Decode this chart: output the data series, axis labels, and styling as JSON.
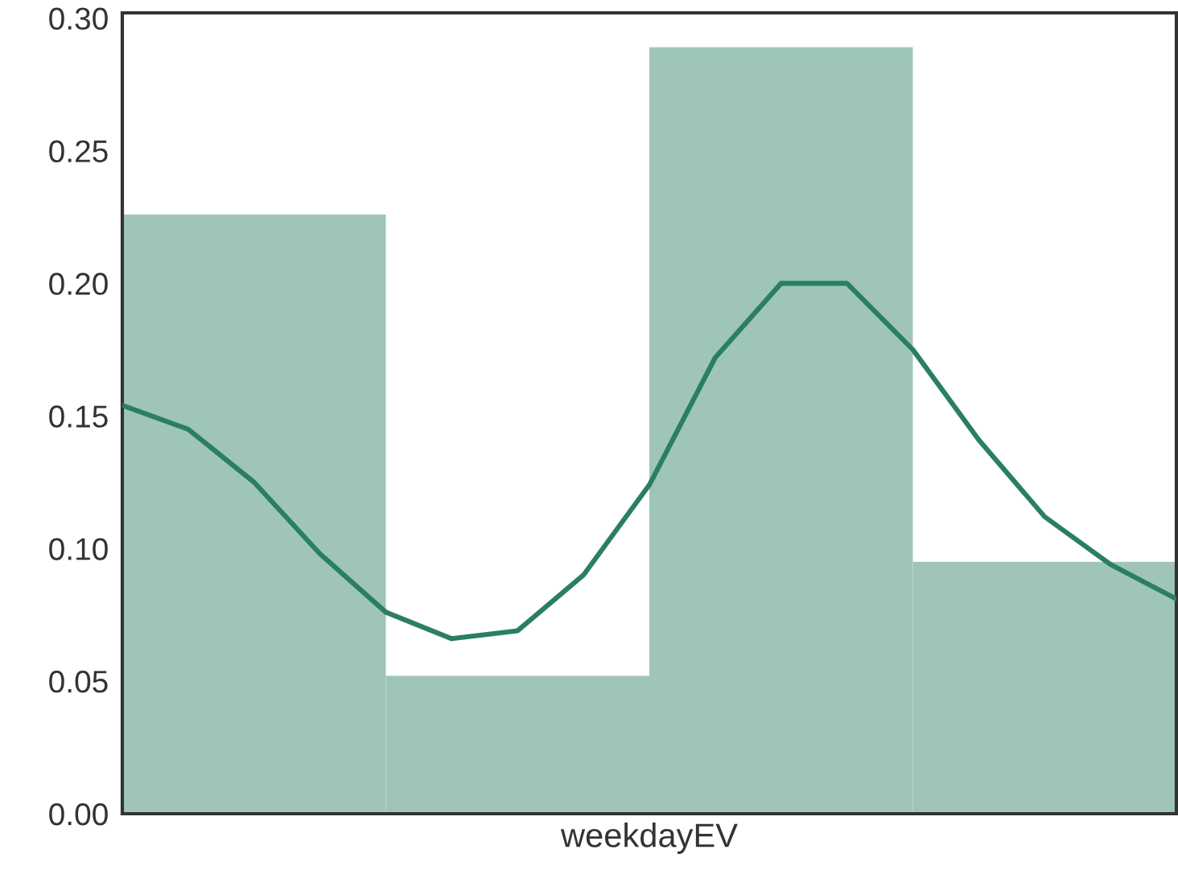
{
  "chart_data": [
    {
      "type": "bar",
      "xlabel": "weekdayEV",
      "categories": [
        null,
        null,
        null,
        null
      ],
      "values": [
        0.226,
        0.052,
        0.289,
        0.095
      ],
      "color": "#9fc5bb",
      "ylim": [
        0,
        0.302
      ],
      "yticks": [
        {
          "value": 0,
          "label": "0.00"
        },
        {
          "value": 0.05,
          "label": "0.05"
        },
        {
          "value": 0.1,
          "label": "0.10"
        },
        {
          "value": 0.15,
          "label": "0.15"
        },
        {
          "value": 0.2,
          "label": "0.20"
        },
        {
          "value": 0.25,
          "label": "0.25"
        },
        {
          "value": 0.3,
          "label": "0.30"
        }
      ],
      "tick_labels": "y"
    },
    {
      "type": "line",
      "categories": [
        null,
        null,
        null,
        null,
        null,
        null,
        null,
        null,
        null,
        null,
        null,
        null,
        null,
        null,
        null,
        null,
        null
      ],
      "series": [
        {
          "color": "#2a7f62",
          "values": [
            0.154,
            0.145,
            0.125,
            0.098,
            0.076,
            0.066,
            0.069,
            0.09,
            0.124,
            0.172,
            0.2,
            0.2,
            0.175,
            0.141,
            0.112,
            0.094,
            0.081
          ]
        }
      ],
      "ylim": [
        0,
        0.302
      ],
      "tick_labels": false
    }
  ]
}
